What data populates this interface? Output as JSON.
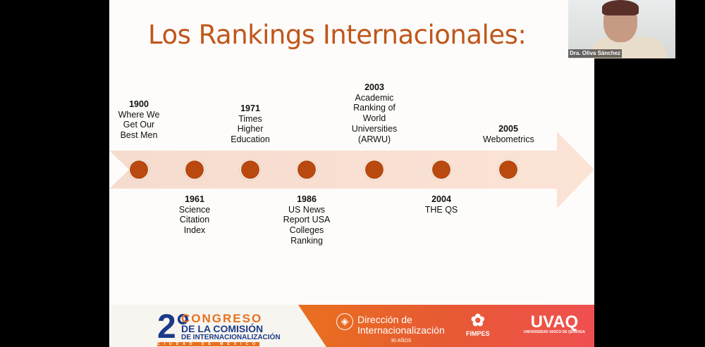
{
  "slide": {
    "title": "Los Rankings Internacionales:",
    "colors": {
      "title": "#c0561a",
      "dot": "#b9490e",
      "arrow": "#f7dfd3"
    },
    "events_top": [
      {
        "year": "1900",
        "text": "Where We Get Our Best Men"
      },
      {
        "year": "1971",
        "text": "Times Higher Education"
      },
      {
        "year": "2003",
        "text": "Academic Ranking of World Universities (ARWU)"
      },
      {
        "year": "2005",
        "text": "Webometrics"
      }
    ],
    "events_bottom": [
      {
        "year": "1961",
        "text": "Science Citation Index"
      },
      {
        "year": "1986",
        "text": "US News Report USA Colleges Ranking"
      },
      {
        "year": "2004",
        "text": "THE QS"
      }
    ],
    "footer": {
      "congreso": {
        "num": "2°",
        "line1": "CONGRESO",
        "line2": "DE LA COMISIÓN",
        "line3": "DE INTERNACIONALIZACIÓN",
        "line4": "CIUDAD DE MÉXICO"
      },
      "direccion": {
        "line1": "Dirección de",
        "line2": "Internacionalización",
        "line3": "30 AÑOS",
        "seal": "MÉXICO"
      },
      "fimpes": "FIMPES",
      "uvaq": {
        "name": "UVAQ",
        "sub": "UNIVERSIDAD VASCO DE QUIROGA"
      }
    }
  },
  "video": {
    "participant_name": "Dra. Oliva Sánchez"
  }
}
